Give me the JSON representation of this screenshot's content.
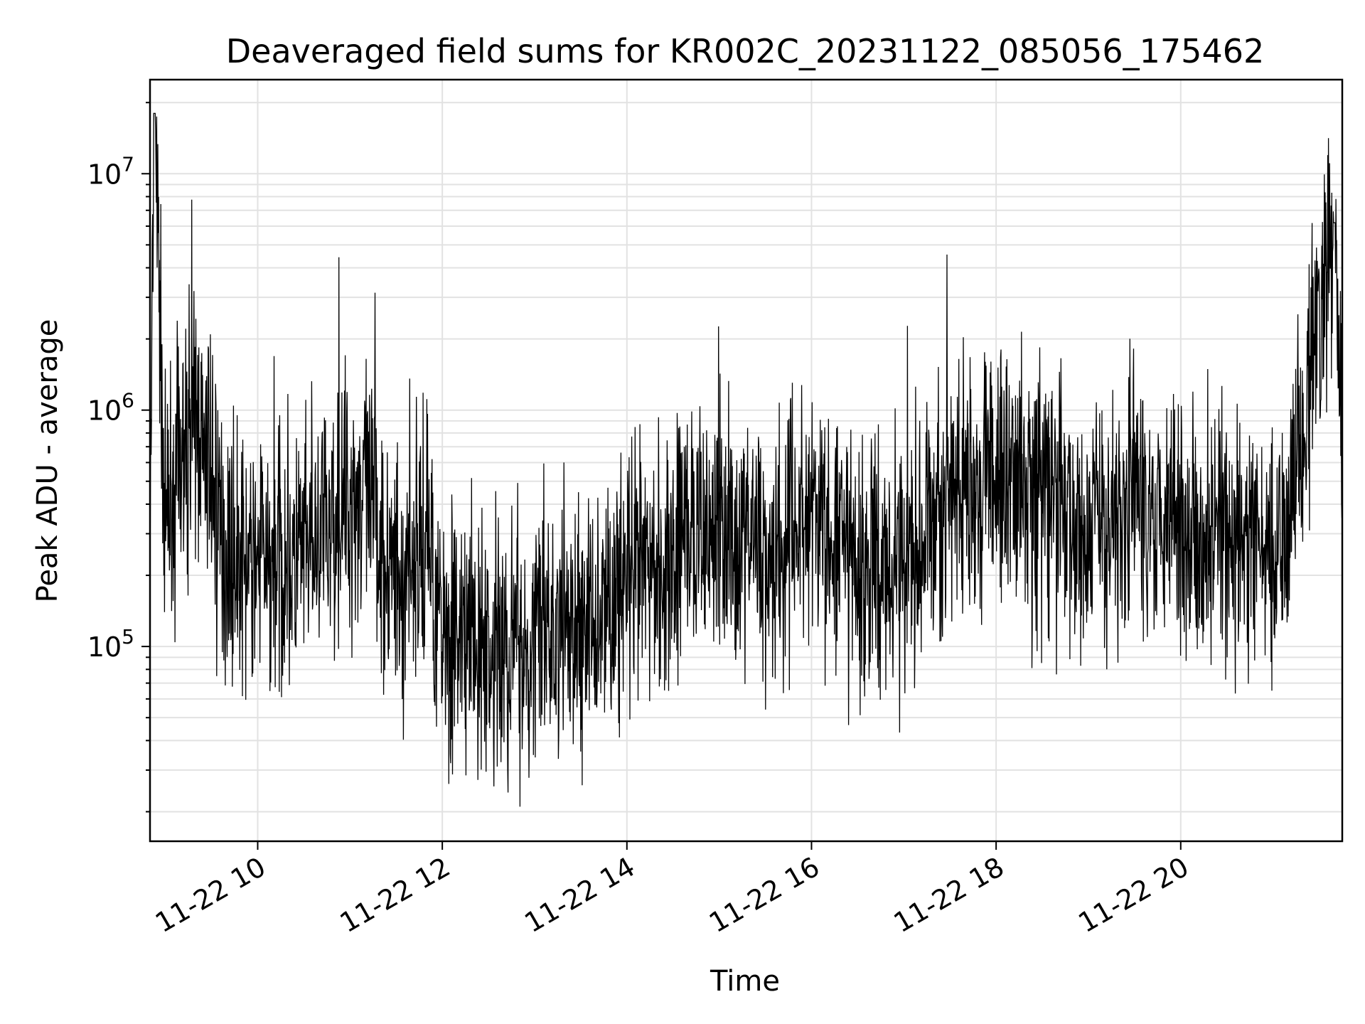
{
  "chart_data": {
    "type": "line",
    "title": "Deaveraged field sums for KR002C_20231122_085056_175462",
    "xlabel": "Time",
    "ylabel": "Peak ADU - average",
    "y_scale": "log",
    "grid": true,
    "x_range": [
      "11-22 08:50",
      "11-22 21:45"
    ],
    "ylim": [
      15000,
      25000000
    ],
    "x_ticks": [
      {
        "label": "11-22 10",
        "hour": 10
      },
      {
        "label": "11-22 12",
        "hour": 12
      },
      {
        "label": "11-22 14",
        "hour": 14
      },
      {
        "label": "11-22 16",
        "hour": 16
      },
      {
        "label": "11-22 18",
        "hour": 18
      },
      {
        "label": "11-22 20",
        "hour": 20
      }
    ],
    "y_ticks": [
      {
        "base": "10",
        "exp": "5",
        "value": 100000
      },
      {
        "base": "10",
        "exp": "6",
        "value": 1000000
      },
      {
        "base": "10",
        "exp": "7",
        "value": 10000000
      }
    ],
    "series": [
      {
        "color": "#000000",
        "points": [
          [
            "11-22 08:50",
            250000
          ],
          [
            "11-22 08:53",
            18000000
          ],
          [
            "11-22 09:00",
            300000
          ],
          [
            "11-22 09:10",
            600000
          ],
          [
            "11-22 09:20",
            900000
          ],
          [
            "11-22 09:40",
            250000
          ],
          [
            "11-22 10:00",
            220000
          ],
          [
            "11-22 10:30",
            230000
          ],
          [
            "11-22 11:00",
            420000
          ],
          [
            "11-22 11:10",
            450000
          ],
          [
            "11-22 11:30",
            180000
          ],
          [
            "11-22 11:50",
            300000
          ],
          [
            "11-22 12:00",
            120000
          ],
          [
            "11-22 12:30",
            90000
          ],
          [
            "11-22 13:00",
            110000
          ],
          [
            "11-22 13:30",
            120000
          ],
          [
            "11-22 14:00",
            180000
          ],
          [
            "11-22 14:30",
            250000
          ],
          [
            "11-22 15:00",
            350000
          ],
          [
            "11-22 15:30",
            250000
          ],
          [
            "11-22 16:00",
            350000
          ],
          [
            "11-22 16:30",
            200000
          ],
          [
            "11-22 17:00",
            250000
          ],
          [
            "11-22 17:30",
            400000
          ],
          [
            "11-22 18:00",
            550000
          ],
          [
            "11-22 18:30",
            450000
          ],
          [
            "11-22 19:00",
            300000
          ],
          [
            "11-22 19:30",
            450000
          ],
          [
            "11-22 20:00",
            350000
          ],
          [
            "11-22 20:30",
            280000
          ],
          [
            "11-22 21:00",
            260000
          ],
          [
            "11-22 21:15",
            550000
          ],
          [
            "11-22 21:40",
            6200000
          ],
          [
            "11-22 21:45",
            600000
          ]
        ]
      }
    ]
  }
}
